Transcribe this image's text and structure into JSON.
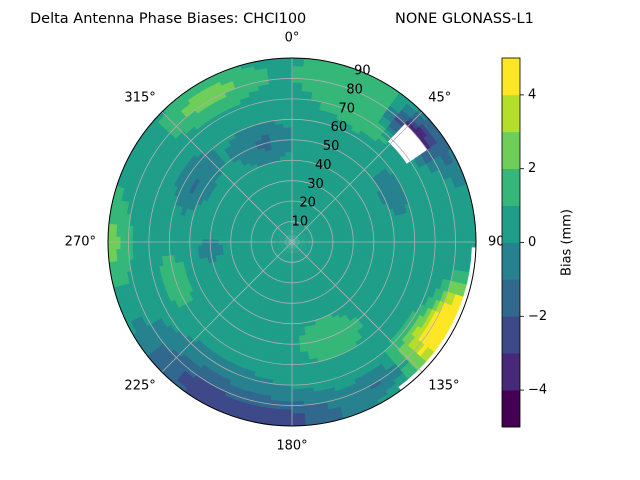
{
  "chart_data": {
    "type": "polar-contour",
    "title_left": "Delta Antenna Phase Biases: CHCI100",
    "title_right": "NONE GLONASS-L1",
    "angle_tick_labels": [
      "0°",
      "45°",
      "90",
      "135°",
      "180°",
      "225°",
      "270°",
      "315°"
    ],
    "angle_tick_degrees": [
      0,
      45,
      90,
      135,
      180,
      225,
      270,
      315
    ],
    "radial_tick_labels": [
      "10",
      "20",
      "30",
      "40",
      "50",
      "60",
      "70",
      "80",
      "90"
    ],
    "radial_ticks": [
      10,
      20,
      30,
      40,
      50,
      60,
      70,
      80,
      90
    ],
    "r_max": 90,
    "direction": "clockwise",
    "zero_location": "north",
    "grid": true,
    "colorbar": {
      "label": "Bias (mm)",
      "range": [
        -5,
        5
      ],
      "level_step": 1,
      "tick_values": [
        4,
        2,
        0,
        -2,
        -4
      ],
      "tick_labels": [
        "4",
        "2",
        "0",
        "−2",
        "−4"
      ],
      "colormap": "viridis",
      "colors": [
        "#440154",
        "#482878",
        "#3e4989",
        "#31688e",
        "#26828e",
        "#1f9e89",
        "#35b779",
        "#6ece58",
        "#b5de2b",
        "#fde725"
      ]
    },
    "field": {
      "background_bias": 0.4,
      "features": [
        {
          "azimuth_deg": 32,
          "elevation_label": 82,
          "bias": 1.4,
          "spread_deg": 30
        },
        {
          "azimuth_deg": 330,
          "elevation_label": 82,
          "bias": 2.4,
          "spread_deg": 18
        },
        {
          "azimuth_deg": 345,
          "elevation_label": 50,
          "bias": -1.5,
          "spread_deg": 14
        },
        {
          "azimuth_deg": 300,
          "elevation_label": 55,
          "bias": -1.5,
          "spread_deg": 14
        },
        {
          "azimuth_deg": 265,
          "elevation_label": 40,
          "bias": -1.3,
          "spread_deg": 8
        },
        {
          "azimuth_deg": 250,
          "elevation_label": 60,
          "bias": 1.3,
          "spread_deg": 12
        },
        {
          "azimuth_deg": 270,
          "elevation_label": 88,
          "bias": 1.6,
          "spread_deg": 14
        },
        {
          "azimuth_deg": 48,
          "elevation_label": 78,
          "bias": -4.6,
          "spread_deg": 10
        },
        {
          "azimuth_deg": 52,
          "elevation_label": 86,
          "bias": -3.0,
          "spread_deg": 14
        },
        {
          "azimuth_deg": 118,
          "elevation_label": 86,
          "bias": 5.2,
          "spread_deg": 14
        },
        {
          "azimuth_deg": 128,
          "elevation_label": 78,
          "bias": 2.6,
          "spread_deg": 14
        },
        {
          "azimuth_deg": 180,
          "elevation_label": 88,
          "bias": -2.6,
          "spread_deg": 22
        },
        {
          "azimuth_deg": 215,
          "elevation_label": 85,
          "bias": -2.2,
          "spread_deg": 22
        },
        {
          "azimuth_deg": 145,
          "elevation_label": 80,
          "bias": -2.0,
          "spread_deg": 12
        },
        {
          "azimuth_deg": 160,
          "elevation_label": 50,
          "bias": 1.0,
          "spread_deg": 20
        },
        {
          "azimuth_deg": 60,
          "elevation_label": 55,
          "bias": -0.8,
          "spread_deg": 14
        }
      ],
      "masked_region": {
        "azimuth_range": [
          45,
          57
        ],
        "elevation_range": [
          68,
          79
        ]
      },
      "unobserved_region": {
        "azimuth_range": [
          93,
          142
        ],
        "elevation_min": 89
      }
    }
  }
}
